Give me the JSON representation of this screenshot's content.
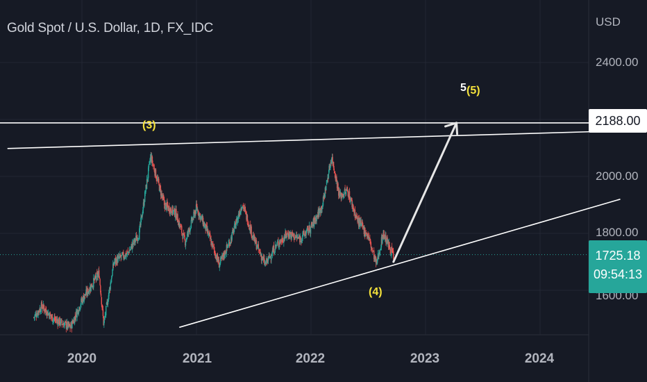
{
  "header": {
    "title": "Gold Spot / U.S. Dollar, 1D, FX_IDC",
    "currency": "USD"
  },
  "colors": {
    "background": "#161a25",
    "bull_candle": "#26a69a",
    "bear_candle": "#ef5350",
    "drawing": "#ffffff",
    "wave_label": "#f5e23b",
    "last_price_bg": "#26a69a"
  },
  "price_tags": {
    "target": "2188.00",
    "last_price": "1725.18",
    "countdown": "09:54:13"
  },
  "partial_axis_label": "1600.00",
  "wave_labels": {
    "w3": "(3)",
    "w4": "(4)",
    "w5": "(5)",
    "w5_minor": "5"
  },
  "chart_data": {
    "type": "candlestick",
    "title": "Gold Spot / U.S. Dollar, 1D, FX_IDC",
    "instrument": "Gold Spot / U.S. Dollar",
    "timeframe": "1D",
    "source": "FX_IDC",
    "currency": "USD",
    "y_ticks": [
      "2400.00",
      "2000.00",
      "1800.00"
    ],
    "x_ticks": [
      "2020",
      "2021",
      "2022",
      "2023",
      "2024"
    ],
    "ylim": [
      1480,
      2550
    ],
    "grid": true,
    "price_path": [
      {
        "t": 2019.58,
        "p": 1505
      },
      {
        "t": 2019.65,
        "p": 1545
      },
      {
        "t": 2019.75,
        "p": 1500
      },
      {
        "t": 2019.9,
        "p": 1470
      },
      {
        "t": 2020.0,
        "p": 1565
      },
      {
        "t": 2020.15,
        "p": 1660
      },
      {
        "t": 2020.19,
        "p": 1480
      },
      {
        "t": 2020.28,
        "p": 1700
      },
      {
        "t": 2020.4,
        "p": 1730
      },
      {
        "t": 2020.5,
        "p": 1800
      },
      {
        "t": 2020.6,
        "p": 2070
      },
      {
        "t": 2020.72,
        "p": 1900
      },
      {
        "t": 2020.82,
        "p": 1870
      },
      {
        "t": 2020.9,
        "p": 1770
      },
      {
        "t": 2021.0,
        "p": 1890
      },
      {
        "t": 2021.1,
        "p": 1800
      },
      {
        "t": 2021.2,
        "p": 1690
      },
      {
        "t": 2021.3,
        "p": 1780
      },
      {
        "t": 2021.4,
        "p": 1905
      },
      {
        "t": 2021.5,
        "p": 1780
      },
      {
        "t": 2021.6,
        "p": 1690
      },
      {
        "t": 2021.7,
        "p": 1760
      },
      {
        "t": 2021.8,
        "p": 1800
      },
      {
        "t": 2021.9,
        "p": 1780
      },
      {
        "t": 2022.0,
        "p": 1820
      },
      {
        "t": 2022.1,
        "p": 1900
      },
      {
        "t": 2022.18,
        "p": 2070
      },
      {
        "t": 2022.25,
        "p": 1930
      },
      {
        "t": 2022.32,
        "p": 1950
      },
      {
        "t": 2022.4,
        "p": 1850
      },
      {
        "t": 2022.5,
        "p": 1790
      },
      {
        "t": 2022.57,
        "p": 1690
      },
      {
        "t": 2022.63,
        "p": 1800
      },
      {
        "t": 2022.72,
        "p": 1720
      }
    ],
    "last_price": 1725.18,
    "price_lines": [
      {
        "name": "target",
        "price": 2188.0
      }
    ],
    "trendlines": [
      {
        "name": "upper-resistance",
        "from": {
          "t": 2019.35,
          "p": 2098
        },
        "to": {
          "t": 2024.7,
          "p": 2160
        }
      },
      {
        "name": "lower-support",
        "from": {
          "t": 2020.85,
          "p": 1470
        },
        "to": {
          "t": 2024.7,
          "p": 1920
        }
      }
    ],
    "projection_arrow": {
      "from": {
        "t": 2022.72,
        "p": 1700
      },
      "to": {
        "t": 2023.27,
        "p": 2188
      }
    },
    "wave_points": [
      {
        "label": "(3)",
        "t": 2020.58,
        "p": 2180
      },
      {
        "label": "(4)",
        "t": 2022.72,
        "p": 1625
      },
      {
        "label": "(5)",
        "t": 2023.27,
        "p": 2285
      }
    ]
  }
}
